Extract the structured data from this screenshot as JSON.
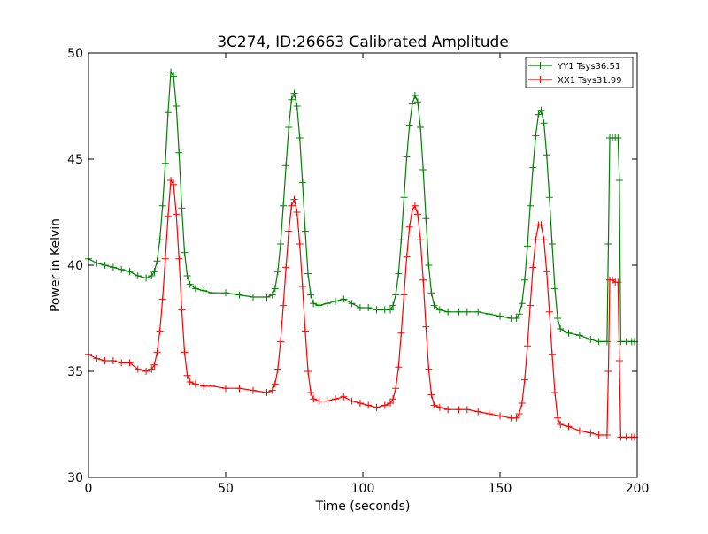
{
  "chart_data": {
    "type": "line",
    "title": "3C274, ID:26663 Calibrated Amplitude",
    "xlabel": "Time (seconds)",
    "ylabel": "Power in Kelvin",
    "xlim": [
      0,
      200
    ],
    "ylim": [
      30,
      50
    ],
    "xticks": [
      0,
      50,
      100,
      150,
      200
    ],
    "yticks": [
      30,
      35,
      40,
      45,
      50
    ],
    "xtick_labels": [
      "0",
      "50",
      "100",
      "150",
      "200"
    ],
    "ytick_labels": [
      "30",
      "35",
      "40",
      "45",
      "50"
    ],
    "grid": false,
    "legend_placement": "top-right",
    "marker": "plus",
    "series": [
      {
        "name": "YY1 Tsys36.51",
        "color": "#008000",
        "points": [
          [
            0,
            40.3
          ],
          [
            3,
            40.1
          ],
          [
            6,
            40.0
          ],
          [
            9,
            39.9
          ],
          [
            12,
            39.8
          ],
          [
            15,
            39.7
          ],
          [
            18,
            39.5
          ],
          [
            21,
            39.4
          ],
          [
            23,
            39.5
          ],
          [
            24,
            39.7
          ],
          [
            25,
            40.2
          ],
          [
            26,
            41.2
          ],
          [
            27,
            42.8
          ],
          [
            28,
            44.8
          ],
          [
            29,
            47.2
          ],
          [
            30,
            49.1
          ],
          [
            31,
            48.9
          ],
          [
            32,
            47.5
          ],
          [
            33,
            45.3
          ],
          [
            34,
            42.7
          ],
          [
            35,
            40.6
          ],
          [
            36,
            39.5
          ],
          [
            37,
            39.1
          ],
          [
            39,
            38.9
          ],
          [
            42,
            38.8
          ],
          [
            45,
            38.7
          ],
          [
            50,
            38.7
          ],
          [
            55,
            38.6
          ],
          [
            60,
            38.5
          ],
          [
            65,
            38.5
          ],
          [
            67,
            38.6
          ],
          [
            68,
            38.9
          ],
          [
            69,
            39.7
          ],
          [
            70,
            41.0
          ],
          [
            71,
            42.8
          ],
          [
            72,
            44.7
          ],
          [
            73,
            46.5
          ],
          [
            74,
            47.8
          ],
          [
            75,
            48.1
          ],
          [
            76,
            47.5
          ],
          [
            77,
            46.0
          ],
          [
            78,
            43.9
          ],
          [
            79,
            41.6
          ],
          [
            80,
            39.6
          ],
          [
            81,
            38.6
          ],
          [
            82,
            38.2
          ],
          [
            84,
            38.1
          ],
          [
            87,
            38.2
          ],
          [
            90,
            38.3
          ],
          [
            93,
            38.4
          ],
          [
            96,
            38.2
          ],
          [
            99,
            38.0
          ],
          [
            102,
            38.0
          ],
          [
            105,
            37.9
          ],
          [
            108,
            37.9
          ],
          [
            110,
            37.9
          ],
          [
            111,
            38.1
          ],
          [
            112,
            38.6
          ],
          [
            113,
            39.6
          ],
          [
            114,
            41.2
          ],
          [
            115,
            43.2
          ],
          [
            116,
            45.1
          ],
          [
            117,
            46.6
          ],
          [
            118,
            47.6
          ],
          [
            119,
            48.0
          ],
          [
            120,
            47.7
          ],
          [
            121,
            46.5
          ],
          [
            122,
            44.5
          ],
          [
            123,
            42.2
          ],
          [
            124,
            40.0
          ],
          [
            125,
            38.7
          ],
          [
            126,
            38.1
          ],
          [
            128,
            37.9
          ],
          [
            131,
            37.8
          ],
          [
            135,
            37.8
          ],
          [
            138,
            37.8
          ],
          [
            142,
            37.8
          ],
          [
            146,
            37.7
          ],
          [
            150,
            37.6
          ],
          [
            154,
            37.5
          ],
          [
            156,
            37.5
          ],
          [
            157,
            37.7
          ],
          [
            158,
            38.2
          ],
          [
            159,
            39.3
          ],
          [
            160,
            40.9
          ],
          [
            161,
            42.8
          ],
          [
            162,
            44.6
          ],
          [
            163,
            46.1
          ],
          [
            164,
            47.1
          ],
          [
            165,
            47.3
          ],
          [
            166,
            46.7
          ],
          [
            167,
            45.2
          ],
          [
            168,
            43.2
          ],
          [
            169,
            41.0
          ],
          [
            170,
            38.9
          ],
          [
            171,
            37.5
          ],
          [
            172,
            37.0
          ],
          [
            175,
            36.8
          ],
          [
            179,
            36.7
          ],
          [
            183,
            36.5
          ],
          [
            186,
            36.4
          ],
          [
            189,
            36.4
          ],
          [
            189.5,
            41.0
          ],
          [
            190,
            46.0
          ],
          [
            191,
            46.0
          ],
          [
            192,
            46.0
          ],
          [
            193,
            46.0
          ],
          [
            193.5,
            44.0
          ],
          [
            194,
            36.4
          ],
          [
            196,
            36.4
          ],
          [
            198,
            36.4
          ],
          [
            199,
            36.4
          ]
        ]
      },
      {
        "name": "XX1 Tsys31.99",
        "color": "#ff0000",
        "points": [
          [
            0,
            35.8
          ],
          [
            3,
            35.6
          ],
          [
            6,
            35.5
          ],
          [
            9,
            35.5
          ],
          [
            12,
            35.4
          ],
          [
            15,
            35.4
          ],
          [
            18,
            35.1
          ],
          [
            21,
            35.0
          ],
          [
            23,
            35.1
          ],
          [
            24,
            35.3
          ],
          [
            25,
            35.9
          ],
          [
            26,
            36.9
          ],
          [
            27,
            38.4
          ],
          [
            28,
            40.3
          ],
          [
            29,
            42.3
          ],
          [
            30,
            44.0
          ],
          [
            31,
            43.8
          ],
          [
            32,
            42.4
          ],
          [
            33,
            40.3
          ],
          [
            34,
            37.9
          ],
          [
            35,
            35.9
          ],
          [
            36,
            34.8
          ],
          [
            37,
            34.5
          ],
          [
            39,
            34.4
          ],
          [
            42,
            34.3
          ],
          [
            45,
            34.3
          ],
          [
            50,
            34.2
          ],
          [
            55,
            34.2
          ],
          [
            60,
            34.1
          ],
          [
            65,
            34.0
          ],
          [
            67,
            34.1
          ],
          [
            68,
            34.4
          ],
          [
            69,
            35.1
          ],
          [
            70,
            36.4
          ],
          [
            71,
            38.1
          ],
          [
            72,
            39.9
          ],
          [
            73,
            41.6
          ],
          [
            74,
            42.8
          ],
          [
            75,
            43.1
          ],
          [
            76,
            42.5
          ],
          [
            77,
            41.0
          ],
          [
            78,
            39.0
          ],
          [
            79,
            36.9
          ],
          [
            80,
            35.0
          ],
          [
            81,
            34.0
          ],
          [
            82,
            33.7
          ],
          [
            84,
            33.6
          ],
          [
            87,
            33.6
          ],
          [
            90,
            33.7
          ],
          [
            93,
            33.8
          ],
          [
            96,
            33.6
          ],
          [
            99,
            33.5
          ],
          [
            102,
            33.4
          ],
          [
            105,
            33.3
          ],
          [
            108,
            33.4
          ],
          [
            110,
            33.5
          ],
          [
            111,
            33.7
          ],
          [
            112,
            34.2
          ],
          [
            113,
            35.2
          ],
          [
            114,
            36.8
          ],
          [
            115,
            38.6
          ],
          [
            116,
            40.4
          ],
          [
            117,
            41.8
          ],
          [
            118,
            42.6
          ],
          [
            119,
            42.8
          ],
          [
            120,
            42.4
          ],
          [
            121,
            41.2
          ],
          [
            122,
            39.3
          ],
          [
            123,
            37.1
          ],
          [
            124,
            35.1
          ],
          [
            125,
            33.9
          ],
          [
            126,
            33.4
          ],
          [
            128,
            33.3
          ],
          [
            131,
            33.2
          ],
          [
            135,
            33.2
          ],
          [
            138,
            33.2
          ],
          [
            142,
            33.1
          ],
          [
            146,
            33.0
          ],
          [
            150,
            32.9
          ],
          [
            154,
            32.8
          ],
          [
            156,
            32.8
          ],
          [
            157,
            33.0
          ],
          [
            158,
            33.5
          ],
          [
            159,
            34.6
          ],
          [
            160,
            36.2
          ],
          [
            161,
            38.1
          ],
          [
            162,
            39.9
          ],
          [
            163,
            41.2
          ],
          [
            164,
            41.9
          ],
          [
            165,
            41.9
          ],
          [
            166,
            41.2
          ],
          [
            167,
            39.7
          ],
          [
            168,
            37.8
          ],
          [
            169,
            35.8
          ],
          [
            170,
            34.0
          ],
          [
            171,
            32.8
          ],
          [
            172,
            32.5
          ],
          [
            175,
            32.4
          ],
          [
            179,
            32.2
          ],
          [
            183,
            32.1
          ],
          [
            186,
            32.0
          ],
          [
            189,
            32.0
          ],
          [
            189.5,
            35.0
          ],
          [
            190,
            39.3
          ],
          [
            191,
            39.3
          ],
          [
            192,
            39.2
          ],
          [
            193,
            39.2
          ],
          [
            193.5,
            35.5
          ],
          [
            194,
            31.9
          ],
          [
            196,
            31.9
          ],
          [
            198,
            31.9
          ],
          [
            199,
            31.9
          ]
        ]
      }
    ]
  }
}
